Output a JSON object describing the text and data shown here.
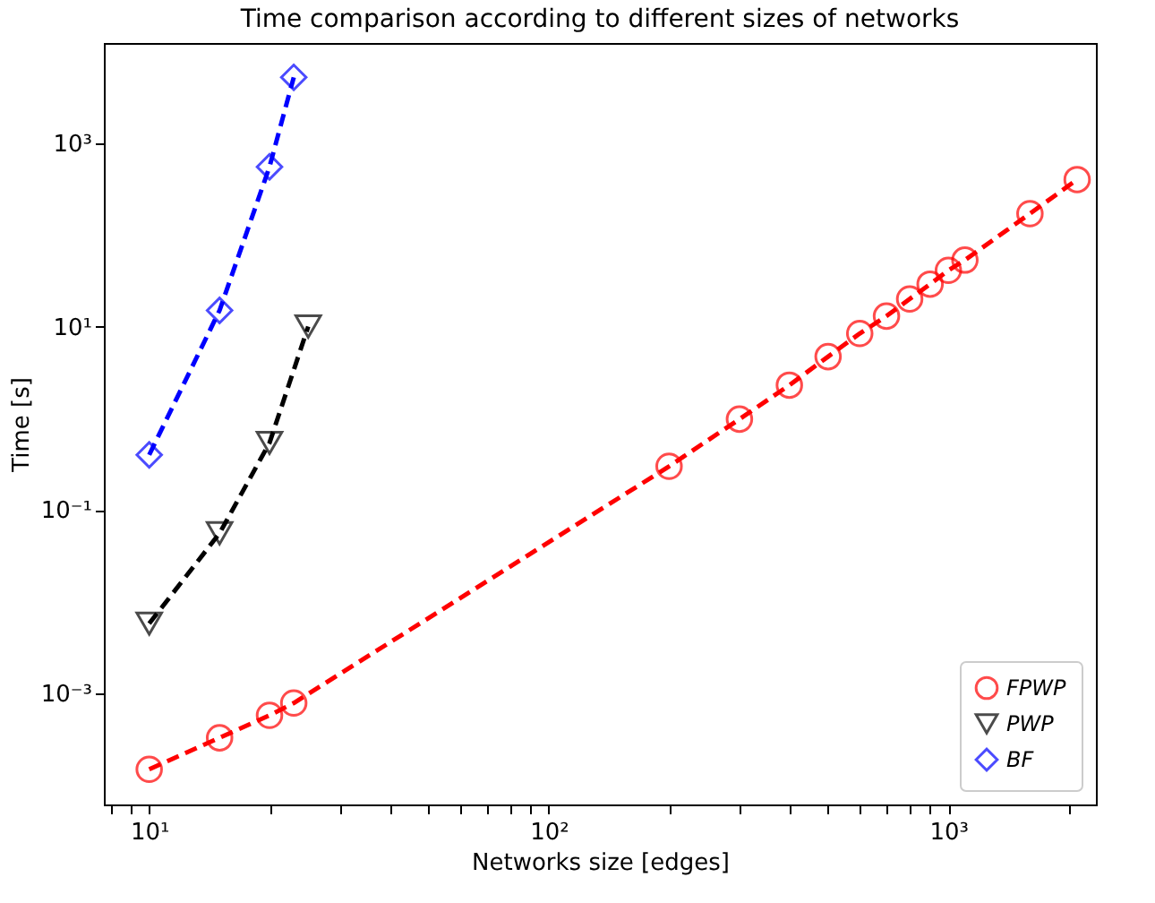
{
  "chart_data": {
    "type": "line",
    "title": "Time comparison according to different sizes of networks",
    "xlabel": "Networks size [edges]",
    "ylabel": "Time [s]",
    "log": "xy",
    "grid": false,
    "legend": "bottom right",
    "line_style": "dashed",
    "xlim": [
      7.7,
      2340
    ],
    "ylim": [
      6.2e-05,
      12300
    ],
    "xticks": [
      {
        "value": 8,
        "label": null
      },
      {
        "value": 9,
        "label": null
      },
      {
        "value": 10,
        "label": "10¹"
      },
      {
        "value": 20,
        "label": null
      },
      {
        "value": 30,
        "label": null
      },
      {
        "value": 40,
        "label": null
      },
      {
        "value": 50,
        "label": null
      },
      {
        "value": 60,
        "label": null
      },
      {
        "value": 70,
        "label": null
      },
      {
        "value": 80,
        "label": null
      },
      {
        "value": 90,
        "label": null
      },
      {
        "value": 100,
        "label": "10²"
      },
      {
        "value": 200,
        "label": null
      },
      {
        "value": 300,
        "label": null
      },
      {
        "value": 400,
        "label": null
      },
      {
        "value": 500,
        "label": null
      },
      {
        "value": 600,
        "label": null
      },
      {
        "value": 700,
        "label": null
      },
      {
        "value": 800,
        "label": null
      },
      {
        "value": 900,
        "label": null
      },
      {
        "value": 1000,
        "label": "10³"
      },
      {
        "value": 2000,
        "label": null
      }
    ],
    "yticks": [
      {
        "value": 0.001,
        "label": "10⁻³"
      },
      {
        "value": 0.1,
        "label": "10⁻¹"
      },
      {
        "value": 10,
        "label": "10¹"
      },
      {
        "value": 1000,
        "label": "10³"
      }
    ],
    "series": [
      {
        "name": "FPWP",
        "color": "#ff0000",
        "marker": "circle",
        "x": [
          10,
          15,
          20,
          23,
          200,
          300,
          400,
          500,
          600,
          700,
          800,
          900,
          1000,
          1100,
          1600,
          2100
        ],
        "values": [
          0.00015,
          0.00033,
          0.00058,
          0.00079,
          0.3,
          0.98,
          2.3,
          4.7,
          8.4,
          13,
          20,
          29,
          41,
          53,
          170,
          400
        ]
      },
      {
        "name": "PWP",
        "color": "#000000",
        "marker": "triangle-down",
        "x": [
          10,
          15,
          20,
          25
        ],
        "values": [
          0.0058,
          0.056,
          0.54,
          10
        ]
      },
      {
        "name": "BF",
        "color": "#0000ff",
        "marker": "diamond",
        "x": [
          10,
          15,
          20,
          23
        ],
        "values": [
          0.4,
          15,
          550,
          5200
        ]
      }
    ]
  }
}
